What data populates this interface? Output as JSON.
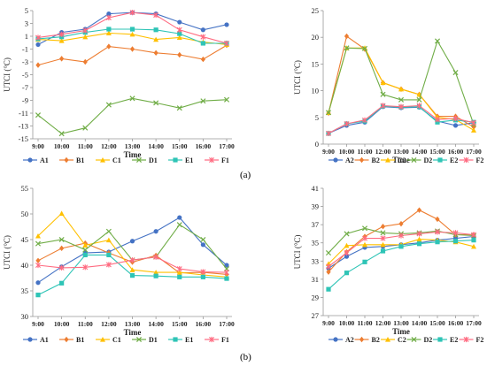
{
  "captions": [
    "(a)",
    "(b)"
  ],
  "colors": {
    "blue": "#4472c4",
    "orange": "#ed7d31",
    "yellow": "#ffc000",
    "green": "#70ad47",
    "teal": "#2ec4b6",
    "pink": "#ff6b81"
  },
  "chart_data": [
    {
      "type": "line",
      "xlabel": "Time",
      "ylabel": "UTCI (°C)",
      "ylim": [
        -15,
        5
      ],
      "yticks": [
        -15,
        -13,
        -11,
        -9,
        -7,
        -5,
        -3,
        -1,
        1,
        3,
        5
      ],
      "categories": [
        "9:00",
        "10:00",
        "11:00",
        "12:00",
        "13:00",
        "14:00",
        "15:00",
        "16:00",
        "17:00"
      ],
      "legend": "bottom",
      "series": [
        {
          "name": "A1",
          "color": "blue",
          "marker": "circle",
          "values": [
            -0.3,
            1.6,
            2.1,
            4.5,
            4.7,
            4.5,
            3.2,
            2.0,
            2.8
          ]
        },
        {
          "name": "B1",
          "color": "orange",
          "marker": "diamond",
          "values": [
            -3.5,
            -2.5,
            -3.0,
            -0.6,
            -1.0,
            -1.6,
            -1.9,
            -2.6,
            -0.4
          ]
        },
        {
          "name": "C1",
          "color": "yellow",
          "marker": "triangle",
          "values": [
            0.5,
            0.3,
            0.9,
            1.5,
            1.3,
            0.5,
            0.8,
            0.1,
            -0.3
          ]
        },
        {
          "name": "D1",
          "color": "green",
          "marker": "x",
          "values": [
            -11.3,
            -14.2,
            -13.3,
            -9.7,
            -8.7,
            -9.4,
            -10.2,
            -9.1,
            -8.9
          ]
        },
        {
          "name": "E1",
          "color": "teal",
          "marker": "square",
          "values": [
            0.6,
            0.9,
            1.6,
            2.1,
            2.1,
            2.0,
            1.4,
            -0.1,
            -0.1
          ]
        },
        {
          "name": "F1",
          "color": "pink",
          "marker": "cross",
          "values": [
            0.8,
            1.3,
            1.9,
            3.9,
            4.7,
            4.3,
            2.0,
            0.9,
            -0.1
          ]
        }
      ]
    },
    {
      "type": "line",
      "xlabel": "Time",
      "ylabel": "UTCI (°C)",
      "ylim": [
        0,
        25
      ],
      "yticks": [
        0,
        5,
        10,
        15,
        20,
        25
      ],
      "categories": [
        "9:00",
        "10:00",
        "11:00",
        "12:00",
        "13:00",
        "14:00",
        "15:00",
        "16:00",
        "17:00"
      ],
      "legend": "bottom",
      "series": [
        {
          "name": "A2",
          "color": "blue",
          "marker": "circle",
          "values": [
            2.0,
            3.5,
            4.1,
            7.0,
            6.8,
            6.9,
            4.3,
            3.5,
            4.0
          ]
        },
        {
          "name": "B2",
          "color": "orange",
          "marker": "diamond",
          "values": [
            5.8,
            20.2,
            17.8,
            11.5,
            10.3,
            9.3,
            5.2,
            5.2,
            3.2
          ]
        },
        {
          "name": "C2",
          "color": "yellow",
          "marker": "triangle",
          "values": [
            5.9,
            18.0,
            18.0,
            11.5,
            10.3,
            9.3,
            5.0,
            4.6,
            2.6
          ]
        },
        {
          "name": "D2",
          "color": "green",
          "marker": "x",
          "values": [
            5.9,
            18.0,
            17.9,
            9.3,
            8.3,
            8.3,
            19.3,
            13.4,
            3.7
          ]
        },
        {
          "name": "E2",
          "color": "teal",
          "marker": "square",
          "values": [
            2.0,
            3.8,
            4.3,
            7.1,
            6.9,
            7.0,
            4.1,
            4.5,
            4.1
          ]
        },
        {
          "name": "F2",
          "color": "pink",
          "marker": "cross",
          "values": [
            2.0,
            3.8,
            4.5,
            7.2,
            7.0,
            7.2,
            4.6,
            4.8,
            4.0
          ]
        }
      ]
    },
    {
      "type": "line",
      "xlabel": "Time",
      "ylabel": "UTCI (°C)",
      "ylim": [
        30,
        55
      ],
      "yticks": [
        30,
        35,
        40,
        45,
        50,
        55
      ],
      "categories": [
        "9:00",
        "10:00",
        "11:00",
        "12:00",
        "13:00",
        "14:00",
        "15:00",
        "16:00",
        "17:00"
      ],
      "legend": "bottom",
      "series": [
        {
          "name": "A1",
          "color": "blue",
          "marker": "circle",
          "values": [
            36.6,
            39.7,
            42.4,
            42.6,
            44.7,
            46.6,
            49.3,
            44.0,
            40.0
          ]
        },
        {
          "name": "B1",
          "color": "orange",
          "marker": "diamond",
          "values": [
            40.9,
            43.3,
            44.3,
            42.4,
            40.6,
            41.9,
            38.5,
            38.6,
            38.2
          ]
        },
        {
          "name": "C1",
          "color": "yellow",
          "marker": "triangle",
          "values": [
            45.7,
            50.1,
            43.9,
            44.9,
            39.1,
            38.6,
            38.6,
            38.1,
            37.7
          ]
        },
        {
          "name": "D1",
          "color": "green",
          "marker": "x",
          "values": [
            44.2,
            45.0,
            43.0,
            46.6,
            41.0,
            41.6,
            47.9,
            45.0,
            39.3
          ]
        },
        {
          "name": "E1",
          "color": "teal",
          "marker": "square",
          "values": [
            34.2,
            36.5,
            42.0,
            42.0,
            38.0,
            37.9,
            37.7,
            37.7,
            37.4
          ]
        },
        {
          "name": "F1",
          "color": "pink",
          "marker": "cross",
          "values": [
            40.0,
            39.5,
            39.6,
            40.1,
            41.0,
            41.6,
            39.3,
            38.7,
            38.6
          ]
        }
      ]
    },
    {
      "type": "line",
      "xlabel": "Time",
      "ylabel": "UTCI (°C)",
      "ylim": [
        27,
        41
      ],
      "yticks": [
        27,
        29,
        31,
        33,
        35,
        37,
        39,
        41
      ],
      "categories": [
        "9:00",
        "10:00",
        "11:00",
        "12:00",
        "13:00",
        "14:00",
        "15:00",
        "16:00",
        "17:00"
      ],
      "legend": "bottom",
      "series": [
        {
          "name": "A2",
          "color": "blue",
          "marker": "circle",
          "values": [
            32.2,
            33.5,
            34.5,
            34.6,
            34.8,
            35.0,
            35.3,
            35.5,
            35.7
          ]
        },
        {
          "name": "B2",
          "color": "orange",
          "marker": "diamond",
          "values": [
            31.8,
            34.0,
            35.7,
            36.8,
            37.1,
            38.6,
            37.6,
            35.9,
            35.9
          ]
        },
        {
          "name": "C2",
          "color": "yellow",
          "marker": "triangle",
          "values": [
            32.7,
            34.7,
            34.8,
            34.8,
            34.8,
            35.4,
            35.3,
            35.1,
            34.6
          ]
        },
        {
          "name": "D2",
          "color": "green",
          "marker": "x",
          "values": [
            33.9,
            36.0,
            36.6,
            36.1,
            36.0,
            36.1,
            36.3,
            35.9,
            35.8
          ]
        },
        {
          "name": "E2",
          "color": "teal",
          "marker": "square",
          "values": [
            29.9,
            31.7,
            32.9,
            34.1,
            34.6,
            34.9,
            35.1,
            35.2,
            35.3
          ]
        },
        {
          "name": "F2",
          "color": "pink",
          "marker": "cross",
          "values": [
            32.4,
            33.9,
            35.5,
            35.5,
            35.8,
            36.0,
            36.2,
            36.1,
            35.9
          ]
        }
      ]
    }
  ]
}
